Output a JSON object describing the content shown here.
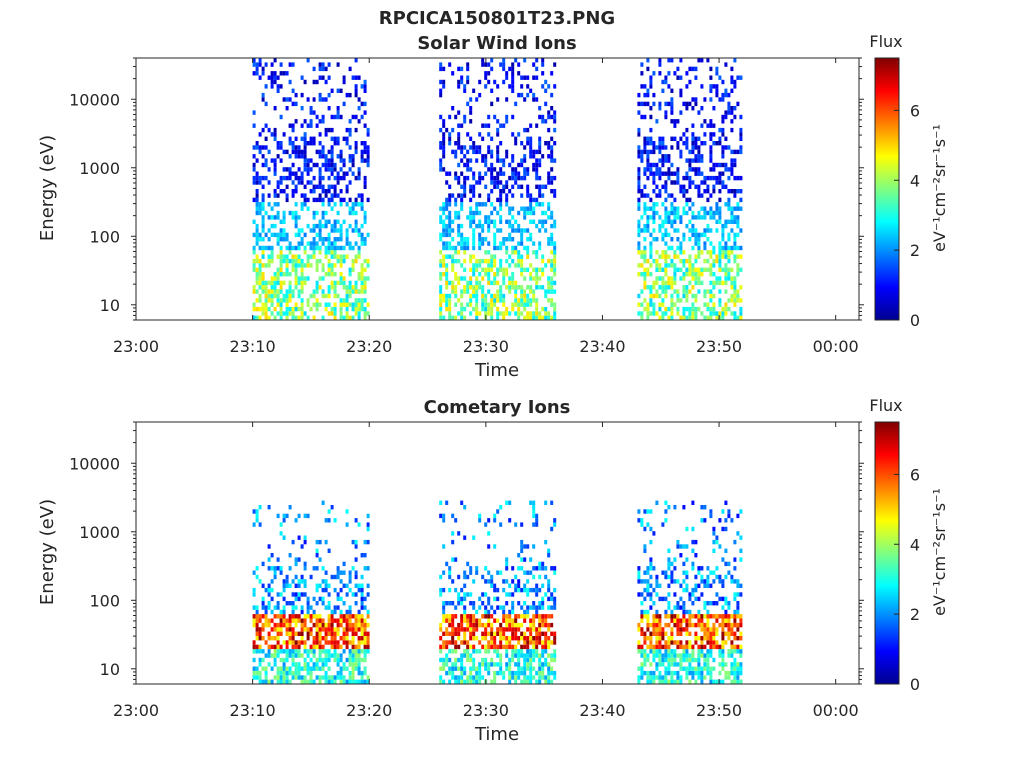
{
  "figure": {
    "title": "RPCICA150801T23.PNG"
  },
  "chart_data": [
    {
      "type": "heatmap",
      "title": "Solar Wind Ions",
      "xlabel": "Time",
      "ylabel": "Energy (eV)",
      "x_ticks": [
        "23:00",
        "23:10",
        "23:20",
        "23:30",
        "23:40",
        "23:50",
        "00:00"
      ],
      "y_ticks": [
        "10",
        "100",
        "1000",
        "10000"
      ],
      "y_scale": "log",
      "ylim": [
        6,
        40000
      ],
      "xlim_minutes": [
        0,
        62
      ],
      "colorbar": {
        "title": "Flux",
        "label": "eV⁻¹cm⁻²sr⁻¹s⁻¹",
        "range": [
          0,
          7.5
        ],
        "ticks": [
          "0",
          "2",
          "4",
          "6"
        ],
        "colormap": "jet"
      },
      "activity_intervals": [
        {
          "start": "23:10",
          "end": "23:20",
          "flux_range": [
            0.5,
            5.5
          ]
        },
        {
          "start": "23:26",
          "end": "23:36",
          "flux_range": [
            0.5,
            5
          ]
        },
        {
          "start": "23:43",
          "end": "23:52",
          "flux_range": [
            0.5,
            4
          ]
        }
      ]
    },
    {
      "type": "heatmap",
      "title": "Cometary Ions",
      "xlabel": "Time",
      "ylabel": "Energy (eV)",
      "x_ticks": [
        "23:00",
        "23:10",
        "23:20",
        "23:30",
        "23:40",
        "23:50",
        "00:00"
      ],
      "y_ticks": [
        "10",
        "100",
        "1000",
        "10000"
      ],
      "y_scale": "log",
      "ylim": [
        6,
        40000
      ],
      "xlim_minutes": [
        0,
        62
      ],
      "colorbar": {
        "title": "Flux",
        "label": "eV⁻¹cm⁻²sr⁻¹s⁻¹",
        "range": [
          0,
          7.5
        ],
        "ticks": [
          "0",
          "2",
          "4",
          "6"
        ],
        "colormap": "jet"
      },
      "activity_intervals": [
        {
          "start": "23:10",
          "end": "23:20",
          "flux_range": [
            1,
            7.5
          ]
        },
        {
          "start": "23:26",
          "end": "23:36",
          "flux_range": [
            1,
            6
          ]
        },
        {
          "start": "23:43",
          "end": "23:52",
          "flux_range": [
            1,
            7
          ]
        }
      ]
    }
  ]
}
